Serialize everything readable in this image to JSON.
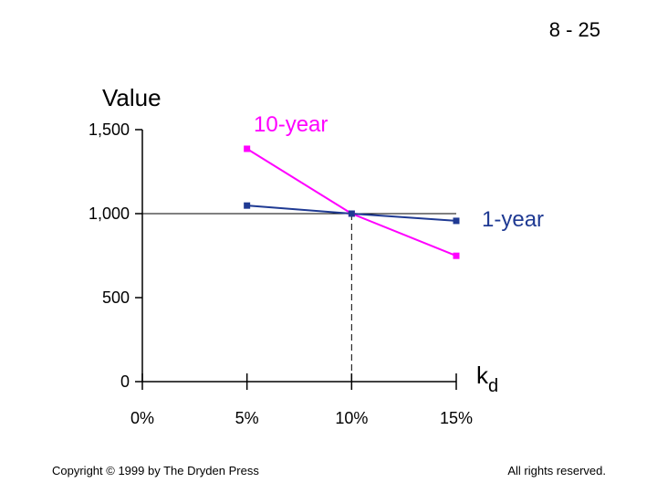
{
  "slide_number": "8 - 25",
  "footer": {
    "left": "Copyright © 1999 by The Dryden Press",
    "right": "All rights reserved."
  },
  "chart_data": {
    "type": "line",
    "ylabel": "Value",
    "xlabel_main": "k",
    "xlabel_sub": "d",
    "x_ticks": [
      "0%",
      "5%",
      "10%",
      "15%"
    ],
    "y_ticks": [
      "0",
      "500",
      "1,000",
      "1,500"
    ],
    "x": [
      0.05,
      0.1,
      0.15
    ],
    "xlim": [
      0,
      0.15
    ],
    "ylim": [
      0,
      1500
    ],
    "reference": {
      "par_value": 1000,
      "rate": 0.1
    },
    "series": [
      {
        "name": "10-year",
        "color": "#ff00ff",
        "values": [
          1386,
          1000,
          749
        ]
      },
      {
        "name": "1-year",
        "color": "#1f3a93",
        "values": [
          1048,
          1000,
          957
        ]
      }
    ]
  }
}
